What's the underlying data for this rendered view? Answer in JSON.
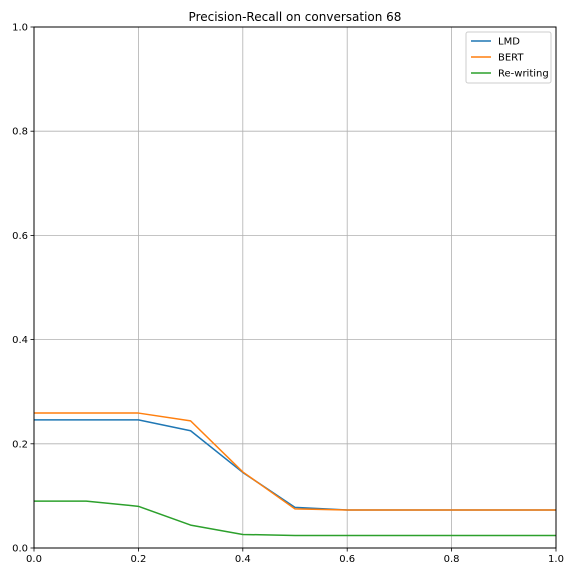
{
  "chart_data": {
    "type": "line",
    "title": "Precision-Recall on conversation 68",
    "xlabel": "",
    "ylabel": "",
    "xlim": [
      0.0,
      1.0
    ],
    "ylim": [
      0.0,
      1.0
    ],
    "xticks": [
      "0.0",
      "0.2",
      "0.4",
      "0.6",
      "0.8",
      "1.0"
    ],
    "yticks": [
      "0.0",
      "0.2",
      "0.4",
      "0.6",
      "0.8",
      "1.0"
    ],
    "grid": true,
    "legend_position": "top-right",
    "x": [
      0.0,
      0.1,
      0.2,
      0.3,
      0.4,
      0.5,
      0.6,
      0.7,
      0.8,
      0.9,
      1.0
    ],
    "series": [
      {
        "name": "LMD",
        "color": "#1f77b4",
        "values": [
          0.246,
          0.246,
          0.246,
          0.225,
          0.145,
          0.078,
          0.073,
          0.073,
          0.073,
          0.073,
          0.073
        ]
      },
      {
        "name": "BERT",
        "color": "#ff7f0e",
        "values": [
          0.259,
          0.259,
          0.259,
          0.244,
          0.146,
          0.075,
          0.073,
          0.073,
          0.073,
          0.073,
          0.073
        ]
      },
      {
        "name": "Re-writing",
        "color": "#2ca02c",
        "values": [
          0.09,
          0.09,
          0.08,
          0.044,
          0.026,
          0.024,
          0.024,
          0.024,
          0.024,
          0.024,
          0.024
        ]
      }
    ]
  }
}
